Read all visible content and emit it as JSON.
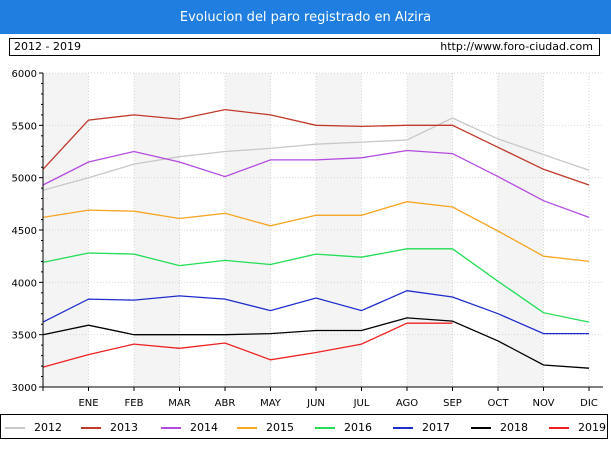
{
  "header": {
    "title": "Evolucion del paro registrado en Alzira",
    "range": "2012 - 2019",
    "url": "http://www.foro-ciudad.com"
  },
  "chart_data": {
    "type": "line",
    "categories": [
      "",
      "ENE",
      "FEB",
      "MAR",
      "ABR",
      "MAY",
      "JUN",
      "JUL",
      "AGO",
      "SEP",
      "OCT",
      "NOV",
      "DIC"
    ],
    "ylim": [
      3000,
      6000
    ],
    "yticks": [
      3000,
      3500,
      4000,
      4500,
      5000,
      5500,
      6000
    ],
    "grid": true,
    "legend": "bottom",
    "series": [
      {
        "name": "2012",
        "color": "#c8c8c8",
        "values": [
          4880,
          5000,
          5130,
          5200,
          5250,
          5280,
          5320,
          5340,
          5360,
          5570,
          5370,
          5220,
          5070
        ]
      },
      {
        "name": "2013",
        "color": "#c0392b",
        "values": [
          5080,
          5550,
          5600,
          5560,
          5650,
          5600,
          5500,
          5490,
          5500,
          5500,
          5290,
          5080,
          4930
        ]
      },
      {
        "name": "2014",
        "color": "#b44be0",
        "values": [
          4930,
          5150,
          5250,
          5150,
          5010,
          5170,
          5170,
          5190,
          5260,
          5230,
          5010,
          4780,
          4620
        ]
      },
      {
        "name": "2015",
        "color": "#f5a623",
        "values": [
          4620,
          4690,
          4680,
          4610,
          4660,
          4540,
          4640,
          4640,
          4770,
          4720,
          4490,
          4250,
          4200
        ]
      },
      {
        "name": "2016",
        "color": "#22dd55",
        "values": [
          4190,
          4280,
          4270,
          4160,
          4210,
          4170,
          4270,
          4240,
          4320,
          4320,
          4010,
          3710,
          3620
        ]
      },
      {
        "name": "2017",
        "color": "#1f2ccc",
        "values": [
          3620,
          3840,
          3830,
          3870,
          3840,
          3730,
          3850,
          3730,
          3920,
          3860,
          3700,
          3510,
          3510
        ]
      },
      {
        "name": "2018",
        "color": "#000000",
        "values": [
          3500,
          3590,
          3500,
          3500,
          3500,
          3510,
          3540,
          3540,
          3660,
          3630,
          3440,
          3210,
          3180
        ]
      },
      {
        "name": "2019",
        "color": "#ee2222",
        "values": [
          3190,
          3310,
          3410,
          3370,
          3420,
          3260,
          3330,
          3410,
          3610,
          3610,
          null,
          null,
          null
        ]
      }
    ]
  }
}
